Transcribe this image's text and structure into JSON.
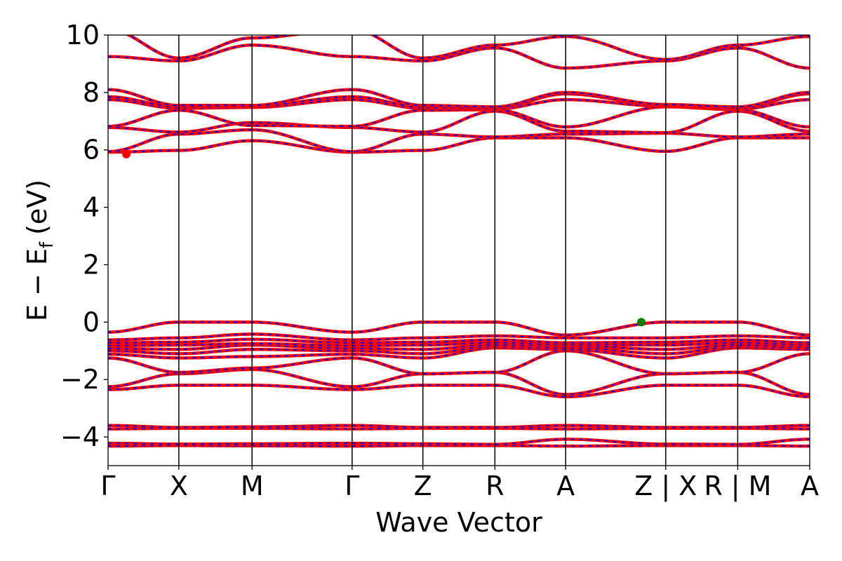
{
  "chart_data": {
    "type": "line",
    "title": "",
    "xlabel": "Wave Vector",
    "ylabel": "E − E",
    "ylabel_subscript": "f",
    "ylabel_unit": "(eV)",
    "ylim": [
      -5,
      10
    ],
    "yticks": [
      -4,
      -2,
      0,
      2,
      4,
      6,
      8,
      10
    ],
    "ytick_labels": [
      "−4",
      "−2",
      "0",
      "2",
      "4",
      "6",
      "8",
      "10"
    ],
    "xlim": [
      0,
      5.75
    ],
    "kpoints": [
      {
        "x": 0.0,
        "label": "Γ"
      },
      {
        "x": 0.58,
        "label": "X"
      },
      {
        "x": 1.18,
        "label": "M"
      },
      {
        "x": 2.0,
        "label": "Γ"
      },
      {
        "x": 2.58,
        "label": "Z"
      },
      {
        "x": 3.17,
        "label": "R"
      },
      {
        "x": 3.75,
        "label": "A"
      },
      {
        "x": 4.57,
        "label": "Z | X"
      },
      {
        "x": 5.16,
        "label": "R | M"
      },
      {
        "x": 5.75,
        "label": "A"
      }
    ],
    "grid": false,
    "series_colors": [
      "#ff0000",
      "#0000ff"
    ],
    "markers": [
      {
        "name": "conduction band minimum",
        "x": 0.15,
        "y": 5.85,
        "color": "#ff0000"
      },
      {
        "name": "valence band maximum",
        "x": 4.37,
        "y": 0.0,
        "color": "#008000"
      }
    ],
    "bands": [
      [
        -4.32,
        -4.3,
        -4.31,
        -4.32,
        -4.3,
        -4.3,
        -4.32,
        -4.3,
        -4.3,
        -4.32
      ],
      [
        -4.22,
        -4.25,
        -4.24,
        -4.22,
        -4.24,
        -4.26,
        -4.08,
        -4.25,
        -4.26,
        -4.08
      ],
      [
        -3.72,
        -3.7,
        -3.7,
        -3.72,
        -3.7,
        -3.7,
        -3.72,
        -3.7,
        -3.7,
        -3.72
      ],
      [
        -3.6,
        -3.67,
        -3.65,
        -3.6,
        -3.67,
        -3.67,
        -3.6,
        -3.67,
        -3.67,
        -3.6
      ],
      [
        -2.35,
        -2.2,
        -2.2,
        -2.35,
        -2.2,
        -2.2,
        -2.6,
        -2.2,
        -2.2,
        -2.6
      ],
      [
        -2.25,
        -1.8,
        -1.65,
        -2.25,
        -1.8,
        -1.75,
        -2.52,
        -1.8,
        -1.75,
        -2.52
      ],
      [
        -1.25,
        -1.75,
        -1.6,
        -1.25,
        -1.8,
        -1.75,
        -1.0,
        -1.8,
        -1.75,
        -1.1
      ],
      [
        -1.12,
        -1.25,
        -1.2,
        -1.12,
        -1.25,
        -0.9,
        -0.95,
        -1.25,
        -0.9,
        -0.95
      ],
      [
        -1.0,
        -1.1,
        -0.95,
        -1.0,
        -1.1,
        -0.85,
        -0.88,
        -1.1,
        -0.85,
        -0.88
      ],
      [
        -0.92,
        -0.95,
        -0.8,
        -0.92,
        -0.95,
        -0.8,
        -0.82,
        -0.95,
        -0.8,
        -0.82
      ],
      [
        -0.82,
        -0.8,
        -0.75,
        -0.82,
        -0.8,
        -0.72,
        -0.78,
        -0.8,
        -0.72,
        -0.78
      ],
      [
        -0.72,
        -0.7,
        -0.6,
        -0.72,
        -0.7,
        -0.62,
        -0.72,
        -0.7,
        -0.62,
        -0.72
      ],
      [
        -0.62,
        -0.55,
        -0.42,
        -0.62,
        -0.55,
        -0.48,
        -0.55,
        -0.55,
        -0.48,
        -0.55
      ],
      [
        -0.35,
        0.0,
        0.0,
        -0.35,
        0.0,
        0.0,
        -0.45,
        0.0,
        0.0,
        -0.45
      ],
      [
        5.92,
        5.98,
        6.32,
        5.92,
        5.98,
        6.42,
        6.42,
        5.95,
        6.42,
        6.42
      ],
      [
        5.94,
        6.55,
        6.7,
        5.94,
        6.55,
        6.45,
        6.55,
        6.58,
        6.45,
        6.55
      ],
      [
        6.78,
        6.62,
        6.95,
        6.78,
        6.62,
        7.35,
        6.65,
        6.6,
        7.35,
        6.65
      ],
      [
        6.82,
        7.38,
        6.85,
        6.82,
        7.38,
        7.4,
        6.8,
        7.5,
        7.4,
        6.8
      ],
      [
        7.75,
        7.45,
        7.48,
        7.75,
        7.45,
        7.42,
        7.75,
        7.52,
        7.42,
        7.75
      ],
      [
        7.85,
        7.5,
        7.52,
        7.85,
        7.5,
        7.45,
        7.95,
        7.55,
        7.45,
        7.95
      ],
      [
        8.1,
        7.55,
        7.55,
        8.1,
        7.55,
        7.5,
        8.0,
        7.58,
        7.5,
        8.0
      ],
      [
        9.25,
        9.1,
        9.65,
        9.25,
        9.1,
        9.55,
        8.85,
        9.1,
        9.55,
        8.85
      ],
      [
        10.2,
        9.2,
        9.9,
        10.2,
        9.2,
        9.65,
        9.95,
        9.15,
        9.65,
        9.95
      ]
    ]
  }
}
